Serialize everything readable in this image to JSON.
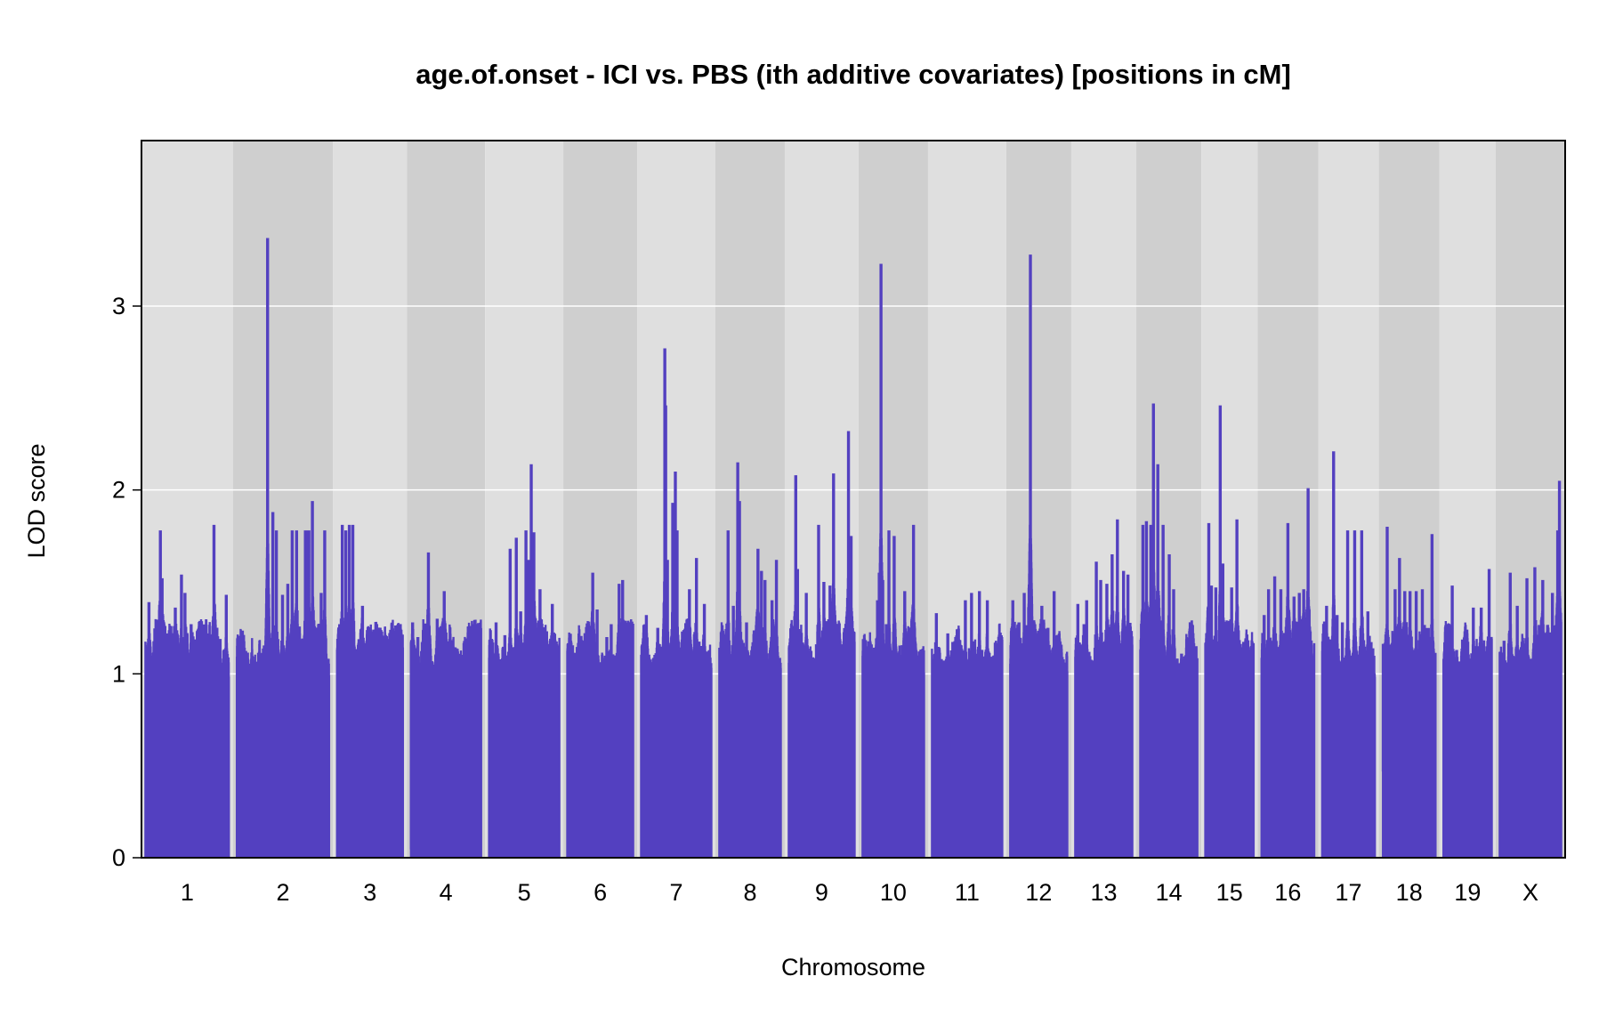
{
  "chart_data": {
    "type": "line",
    "title": "age.of.onset - ICI vs. PBS (ith additive covariates) [positions in cM]",
    "xlabel": "Chromosome",
    "ylabel": "LOD score",
    "ylim": [
      0,
      3.9
    ],
    "yticks": [
      0,
      1,
      2,
      3
    ],
    "grid": true,
    "series_color": "#5340c0",
    "band_colors": [
      "#dfdfdf",
      "#cfcfcf"
    ],
    "chromosomes": [
      {
        "name": "1",
        "length_cM": 95,
        "peaks": [
          [
            4,
            1.39
          ],
          [
            17,
            1.78
          ],
          [
            19,
            1.52
          ],
          [
            29,
            1.26
          ],
          [
            34,
            1.36
          ],
          [
            41,
            1.54
          ],
          [
            45,
            1.44
          ],
          [
            52,
            1.27
          ],
          [
            57,
            1.17
          ],
          [
            78,
            1.81
          ],
          [
            85,
            1.19
          ],
          [
            92,
            1.43
          ]
        ]
      },
      {
        "name": "2",
        "length_cM": 105,
        "peaks": [
          [
            35,
            3.37
          ],
          [
            36,
            1.41
          ],
          [
            41,
            1.88
          ],
          [
            45,
            1.78
          ],
          [
            52,
            1.43
          ],
          [
            58,
            1.49
          ],
          [
            63,
            1.78
          ],
          [
            68,
            1.78
          ],
          [
            78,
            1.78
          ],
          [
            80,
            1.78
          ],
          [
            82,
            1.78
          ],
          [
            86,
            1.94
          ],
          [
            96,
            1.44
          ],
          [
            100,
            1.78
          ]
        ]
      },
      {
        "name": "3",
        "length_cM": 75,
        "peaks": [
          [
            3,
            1.27
          ],
          [
            6,
            1.81
          ],
          [
            10,
            1.78
          ],
          [
            14,
            1.81
          ],
          [
            18,
            1.81
          ],
          [
            29,
            1.37
          ],
          [
            40,
            1.22
          ],
          [
            55,
            1.19
          ],
          [
            71,
            1.27
          ]
        ]
      },
      {
        "name": "4",
        "length_cM": 80,
        "peaks": [
          [
            2,
            1.28
          ],
          [
            8,
            1.2
          ],
          [
            20,
            1.66
          ],
          [
            30,
            1.3
          ],
          [
            38,
            1.45
          ],
          [
            47,
            1.17
          ],
          [
            75,
            1.25
          ]
        ]
      },
      {
        "name": "5",
        "length_cM": 80,
        "peaks": [
          [
            8,
            1.28
          ],
          [
            18,
            1.21
          ],
          [
            24,
            1.68
          ],
          [
            31,
            1.74
          ],
          [
            36,
            1.34
          ],
          [
            42,
            1.78
          ],
          [
            45,
            1.62
          ],
          [
            48,
            2.14
          ],
          [
            51,
            1.77
          ],
          [
            58,
            1.46
          ],
          [
            72,
            1.38
          ]
        ]
      },
      {
        "name": "6",
        "length_cM": 75,
        "peaks": [
          [
            4,
            1.18
          ],
          [
            17,
            1.18
          ],
          [
            29,
            1.55
          ],
          [
            34,
            1.35
          ],
          [
            45,
            1.2
          ],
          [
            50,
            1.27
          ],
          [
            59,
            1.49
          ],
          [
            63,
            1.51
          ]
        ]
      },
      {
        "name": "7",
        "length_cM": 80,
        "peaks": [
          [
            6,
            1.32
          ],
          [
            19,
            1.25
          ],
          [
            27,
            2.77
          ],
          [
            28,
            2.46
          ],
          [
            30,
            1.62
          ],
          [
            36,
            1.93
          ],
          [
            39,
            2.1
          ],
          [
            41,
            1.78
          ],
          [
            47,
            1.23
          ],
          [
            55,
            1.46
          ],
          [
            63,
            1.63
          ],
          [
            72,
            1.38
          ]
        ]
      },
      {
        "name": "8",
        "length_cM": 70,
        "peaks": [
          [
            5,
            1.15
          ],
          [
            10,
            1.78
          ],
          [
            16,
            1.37
          ],
          [
            21,
            2.15
          ],
          [
            23,
            1.94
          ],
          [
            31,
            1.28
          ],
          [
            44,
            1.68
          ],
          [
            48,
            1.56
          ],
          [
            52,
            1.51
          ],
          [
            60,
            1.4
          ],
          [
            65,
            1.62
          ]
        ]
      },
      {
        "name": "9",
        "length_cM": 75,
        "peaks": [
          [
            8,
            2.08
          ],
          [
            10,
            1.57
          ],
          [
            20,
            1.44
          ],
          [
            34,
            1.81
          ],
          [
            40,
            1.5
          ],
          [
            47,
            1.48
          ],
          [
            51,
            2.09
          ],
          [
            55,
            1.24
          ],
          [
            68,
            2.32
          ],
          [
            71,
            1.75
          ]
        ]
      },
      {
        "name": "10",
        "length_cM": 70,
        "peaks": [
          [
            10,
            1.16
          ],
          [
            17,
            1.4
          ],
          [
            19,
            1.55
          ],
          [
            21,
            3.23
          ],
          [
            23,
            1.51
          ],
          [
            27,
            1.27
          ],
          [
            30,
            1.78
          ],
          [
            36,
            1.75
          ],
          [
            48,
            1.45
          ],
          [
            58,
            1.81
          ]
        ]
      },
      {
        "name": "11",
        "length_cM": 80,
        "peaks": [
          [
            5,
            1.33
          ],
          [
            18,
            1.22
          ],
          [
            27,
            1.2
          ],
          [
            38,
            1.4
          ],
          [
            45,
            1.44
          ],
          [
            54,
            1.45
          ],
          [
            63,
            1.4
          ],
          [
            72,
            1.17
          ]
        ]
      },
      {
        "name": "12",
        "length_cM": 65,
        "peaks": [
          [
            3,
            1.4
          ],
          [
            10,
            1.28
          ],
          [
            16,
            1.44
          ],
          [
            23,
            3.28
          ],
          [
            28,
            1.27
          ],
          [
            36,
            1.37
          ],
          [
            43,
            1.25
          ],
          [
            50,
            1.45
          ],
          [
            58,
            1.12
          ]
        ]
      },
      {
        "name": "13",
        "length_cM": 65,
        "peaks": [
          [
            3,
            1.38
          ],
          [
            10,
            1.27
          ],
          [
            13,
            1.4
          ],
          [
            24,
            1.61
          ],
          [
            29,
            1.51
          ],
          [
            36,
            1.49
          ],
          [
            42,
            1.65
          ],
          [
            48,
            1.84
          ],
          [
            55,
            1.56
          ],
          [
            60,
            1.54
          ]
        ]
      },
      {
        "name": "14",
        "length_cM": 65,
        "peaks": [
          [
            3,
            1.81
          ],
          [
            7,
            1.83
          ],
          [
            12,
            1.81
          ],
          [
            15,
            2.47
          ],
          [
            20,
            2.14
          ],
          [
            26,
            1.81
          ],
          [
            33,
            1.65
          ],
          [
            38,
            1.46
          ],
          [
            47,
            1.11
          ]
        ]
      },
      {
        "name": "15",
        "length_cM": 55,
        "peaks": [
          [
            4,
            1.82
          ],
          [
            7,
            1.48
          ],
          [
            12,
            1.47
          ],
          [
            17,
            2.46
          ],
          [
            20,
            1.6
          ],
          [
            30,
            1.47
          ],
          [
            36,
            1.84
          ]
        ]
      },
      {
        "name": "16",
        "length_cM": 60,
        "peaks": [
          [
            3,
            1.32
          ],
          [
            8,
            1.46
          ],
          [
            15,
            1.53
          ],
          [
            22,
            1.46
          ],
          [
            30,
            1.82
          ],
          [
            37,
            1.42
          ],
          [
            43,
            1.44
          ],
          [
            48,
            1.46
          ],
          [
            53,
            2.01
          ]
        ]
      },
      {
        "name": "17",
        "length_cM": 60,
        "peaks": [
          [
            5,
            1.37
          ],
          [
            13,
            2.21
          ],
          [
            17,
            1.32
          ],
          [
            23,
            1.28
          ],
          [
            29,
            1.78
          ],
          [
            37,
            1.78
          ],
          [
            45,
            1.78
          ],
          [
            52,
            1.34
          ]
        ]
      },
      {
        "name": "18",
        "length_cM": 60,
        "peaks": [
          [
            5,
            1.8
          ],
          [
            14,
            1.46
          ],
          [
            19,
            1.63
          ],
          [
            25,
            1.45
          ],
          [
            31,
            1.45
          ],
          [
            38,
            1.45
          ],
          [
            45,
            1.46
          ],
          [
            56,
            1.76
          ]
        ]
      },
      {
        "name": "19",
        "length_cM": 55,
        "peaks": [
          [
            4,
            1.26
          ],
          [
            10,
            1.48
          ],
          [
            15,
            1.13
          ],
          [
            24,
            1.1
          ],
          [
            34,
            1.36
          ],
          [
            43,
            1.36
          ],
          [
            52,
            1.57
          ]
        ]
      },
      {
        "name": "X",
        "length_cM": 70,
        "peaks": [
          [
            5,
            1.18
          ],
          [
            12,
            1.55
          ],
          [
            20,
            1.37
          ],
          [
            31,
            1.52
          ],
          [
            40,
            1.58
          ],
          [
            49,
            1.51
          ],
          [
            60,
            1.44
          ],
          [
            66,
            1.78
          ],
          [
            68,
            2.05
          ]
        ]
      }
    ]
  }
}
